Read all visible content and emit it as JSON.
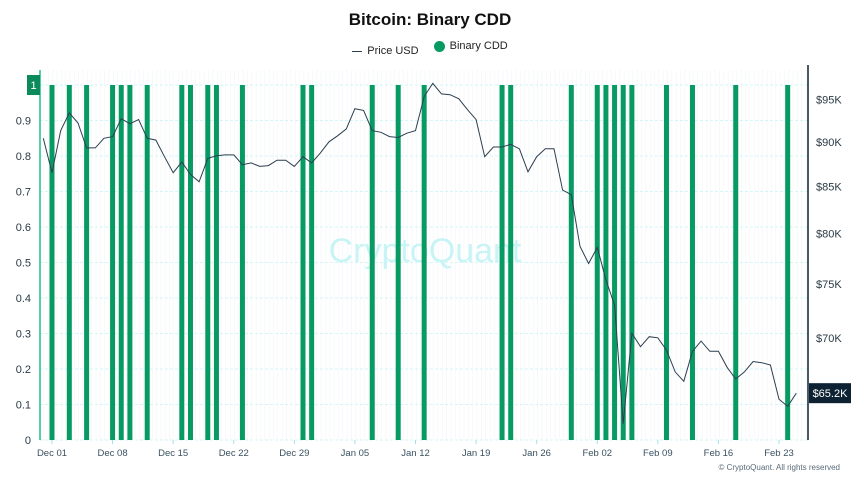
{
  "chart_data": {
    "type": "bar+line",
    "title": "Bitcoin: Binary CDD",
    "legend": {
      "position": "top-center",
      "entries": [
        "Price USD",
        "Binary CDD"
      ]
    },
    "colors": {
      "bars": "#079a62",
      "price_line": "#2c3e50",
      "grid": "#d4f6f8",
      "left_axis": "#1fbf87",
      "right_axis": "#0d2333",
      "watermark": "#c8f4f6"
    },
    "watermark": "CryptoQuant",
    "grid": true,
    "x": [
      "Nov 30",
      "Dec 01",
      "Dec 02",
      "Dec 03",
      "Dec 04",
      "Dec 05",
      "Dec 06",
      "Dec 07",
      "Dec 08",
      "Dec 09",
      "Dec 10",
      "Dec 11",
      "Dec 12",
      "Dec 13",
      "Dec 14",
      "Dec 15",
      "Dec 16",
      "Dec 17",
      "Dec 18",
      "Dec 19",
      "Dec 20",
      "Dec 21",
      "Dec 22",
      "Dec 23",
      "Dec 24",
      "Dec 25",
      "Dec 26",
      "Dec 27",
      "Dec 28",
      "Dec 29",
      "Dec 30",
      "Dec 31",
      "Jan 01",
      "Jan 02",
      "Jan 03",
      "Jan 04",
      "Jan 05",
      "Jan 06",
      "Jan 07",
      "Jan 08",
      "Jan 09",
      "Jan 10",
      "Jan 11",
      "Jan 12",
      "Jan 13",
      "Jan 14",
      "Jan 15",
      "Jan 16",
      "Jan 17",
      "Jan 18",
      "Jan 19",
      "Jan 20",
      "Jan 21",
      "Jan 22",
      "Jan 23",
      "Jan 24",
      "Jan 25",
      "Jan 26",
      "Jan 27",
      "Jan 28",
      "Jan 29",
      "Jan 30",
      "Jan 31",
      "Feb 01",
      "Feb 02",
      "Feb 03",
      "Feb 04",
      "Feb 05",
      "Feb 06",
      "Feb 07",
      "Feb 08",
      "Feb 09",
      "Feb 10",
      "Feb 11",
      "Feb 12",
      "Feb 13",
      "Feb 14",
      "Feb 15",
      "Feb 16",
      "Feb 17",
      "Feb 18",
      "Feb 19",
      "Feb 20",
      "Feb 21",
      "Feb 22",
      "Feb 23",
      "Feb 24",
      "Feb 25"
    ],
    "x_ticks": [
      "Dec 01",
      "Dec 08",
      "Dec 15",
      "Dec 22",
      "Dec 29",
      "Jan 05",
      "Jan 12",
      "Jan 19",
      "Jan 26",
      "Feb 02",
      "Feb 09",
      "Feb 16",
      "Feb 23"
    ],
    "left_axis": {
      "ylim": [
        0,
        1
      ],
      "ticks": [
        "0",
        "0.1",
        "0.2",
        "0.3",
        "0.4",
        "0.5",
        "0.6",
        "0.7",
        "0.8",
        "0.9",
        "1"
      ]
    },
    "right_axis": {
      "scale": "log",
      "ylim": [
        61400,
        96800
      ],
      "ticks": [
        {
          "value": 95000,
          "label": "$95K"
        },
        {
          "value": 90000,
          "label": "$90K"
        },
        {
          "value": 85000,
          "label": "$85K"
        },
        {
          "value": 80000,
          "label": "$80K"
        },
        {
          "value": 75000,
          "label": "$75K"
        },
        {
          "value": 70000,
          "label": "$70K"
        }
      ]
    },
    "series": [
      {
        "name": "Binary CDD",
        "type": "bar",
        "axis": "left",
        "values": [
          0,
          1,
          0,
          1,
          0,
          1,
          0,
          0,
          1,
          1,
          1,
          0,
          1,
          0,
          0,
          0,
          1,
          1,
          0,
          1,
          1,
          0,
          0,
          1,
          0,
          0,
          0,
          0,
          0,
          0,
          1,
          1,
          0,
          0,
          0,
          0,
          0,
          0,
          1,
          0,
          0,
          1,
          0,
          0,
          1,
          0,
          0,
          0,
          0,
          0,
          0,
          0,
          0,
          1,
          1,
          0,
          0,
          0,
          0,
          0,
          0,
          1,
          0,
          0,
          1,
          1,
          1,
          1,
          1,
          0,
          0,
          0,
          1,
          0,
          0,
          1,
          0,
          0,
          0,
          0,
          1,
          0,
          0,
          0,
          0,
          0,
          1,
          0
        ]
      },
      {
        "name": "Price USD",
        "type": "line",
        "axis": "right",
        "values": [
          90400,
          86500,
          91300,
          93400,
          92200,
          89300,
          89300,
          90400,
          90600,
          92700,
          92100,
          92600,
          90400,
          90200,
          88300,
          86500,
          87700,
          86300,
          85500,
          88100,
          88400,
          88500,
          88500,
          87400,
          87600,
          87200,
          87300,
          87900,
          87900,
          87200,
          88300,
          87600,
          88700,
          90000,
          90700,
          91500,
          93900,
          93700,
          91300,
          91100,
          90600,
          90500,
          91000,
          91300,
          95400,
          97000,
          95700,
          95600,
          95100,
          93800,
          92600,
          88300,
          89400,
          89400,
          89700,
          89200,
          86600,
          88300,
          89200,
          89200,
          84600,
          84100,
          78700,
          77000,
          78600,
          75400,
          73000,
          62700,
          70400,
          69200,
          70100,
          70000,
          68900,
          67000,
          66200,
          68800,
          69700,
          68800,
          68800,
          67400,
          66400,
          67000,
          67900,
          67800,
          67600,
          64700,
          64100,
          65200
        ]
      }
    ],
    "last_price_label": "$65.2K"
  },
  "footer": "© CryptoQuant. All rights reserved"
}
